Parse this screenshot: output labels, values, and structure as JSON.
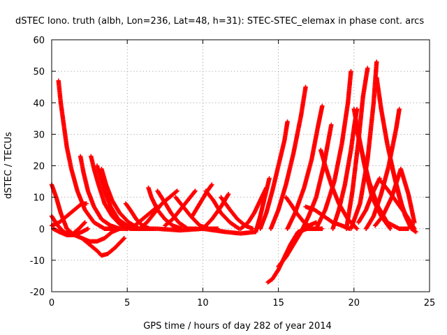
{
  "chart_data": {
    "type": "scatter",
    "title": "dSTEC Iono. truth (albh, Lon=236, Lat=48, h=31): STEC-STEC_elemax in phase cont. arcs",
    "xlabel": "GPS time / hours of day 282 of year 2014",
    "ylabel": "dSTEC  / TECUs",
    "xlim": [
      0,
      25
    ],
    "ylim": [
      -20,
      60
    ],
    "x_ticks": [
      "0",
      "5",
      "10",
      "15",
      "20",
      "25"
    ],
    "y_ticks": [
      "-20",
      "-10",
      "0",
      "10",
      "20",
      "30",
      "40",
      "50",
      "60"
    ],
    "grid": true,
    "marker": "+",
    "color": "#ff0000",
    "series": [
      {
        "x": [
          0.0,
          0.3,
          0.6,
          1.0,
          1.5,
          2.0,
          2.4
        ],
        "y": [
          14,
          10,
          5,
          0,
          -2,
          -1,
          0
        ]
      },
      {
        "x": [
          0.0,
          0.4,
          0.8,
          1.3,
          1.8,
          2.2
        ],
        "y": [
          4,
          1,
          -1,
          -2,
          0,
          2
        ]
      },
      {
        "x": [
          0.45,
          0.6,
          0.8,
          1.0,
          1.3,
          1.7,
          2.2,
          2.8,
          3.5,
          4.2
        ],
        "y": [
          47,
          40,
          33,
          26,
          19,
          12,
          6,
          2,
          0,
          0
        ]
      },
      {
        "x": [
          0.1,
          0.5,
          1.0,
          1.5,
          2.0,
          2.5,
          3.0,
          3.3,
          3.7,
          4.2,
          4.8
        ],
        "y": [
          0,
          -1,
          -2,
          -2,
          -3,
          -5,
          -7,
          -8.5,
          -8,
          -6,
          -3
        ]
      },
      {
        "x": [
          0.0,
          0.5,
          1.0,
          1.5,
          2.0,
          2.3
        ],
        "y": [
          1,
          2,
          4,
          6,
          8,
          8
        ]
      },
      {
        "x": [
          1.9,
          2.1,
          2.4,
          2.8,
          3.3,
          3.9,
          4.5,
          5.0
        ],
        "y": [
          23,
          18,
          12,
          7,
          3,
          1,
          0,
          0
        ]
      },
      {
        "x": [
          2.6,
          2.8,
          3.1,
          3.5,
          4.0,
          4.6,
          5.2,
          5.8
        ],
        "y": [
          23,
          19,
          14,
          8,
          4,
          1,
          0,
          0
        ]
      },
      {
        "x": [
          3.0,
          3.2,
          3.5,
          3.9,
          4.4,
          5.0,
          5.6,
          6.3
        ],
        "y": [
          20,
          17,
          12,
          7,
          3,
          1,
          0,
          0
        ]
      },
      {
        "x": [
          3.3,
          3.6,
          4.0,
          4.5,
          5.1,
          5.8,
          6.5
        ],
        "y": [
          19,
          14,
          9,
          5,
          2,
          0,
          0
        ]
      },
      {
        "x": [
          2.0,
          2.5,
          3.0,
          3.5,
          4.0,
          4.5
        ],
        "y": [
          -3,
          -4,
          -4,
          -3,
          -1,
          0
        ]
      },
      {
        "x": [
          4.9,
          5.2,
          5.6,
          6.0,
          6.5
        ],
        "y": [
          8,
          6,
          3,
          1,
          0
        ]
      },
      {
        "x": [
          5.0,
          5.5,
          6.0,
          6.5,
          7.0
        ],
        "y": [
          0,
          1,
          3,
          5,
          7
        ]
      },
      {
        "x": [
          6.4,
          6.6,
          7.0,
          7.5,
          8.0,
          8.6
        ],
        "y": [
          13,
          10,
          6,
          3,
          1,
          0
        ]
      },
      {
        "x": [
          5.8,
          6.3,
          6.8,
          7.3,
          7.8,
          8.3
        ],
        "y": [
          0,
          2,
          5,
          8,
          10,
          12
        ]
      },
      {
        "x": [
          7.0,
          7.4,
          7.9,
          8.4,
          9.0,
          9.6
        ],
        "y": [
          12,
          9,
          5,
          2,
          0,
          0
        ]
      },
      {
        "x": [
          7.5,
          8.0,
          8.5,
          9.0,
          9.5
        ],
        "y": [
          1,
          3,
          6,
          9,
          12
        ]
      },
      {
        "x": [
          8.2,
          8.7,
          9.2,
          9.8,
          10.4,
          11.0
        ],
        "y": [
          10,
          7,
          4,
          1,
          0,
          0
        ]
      },
      {
        "x": [
          9.3,
          9.8,
          10.3,
          10.6
        ],
        "y": [
          4,
          8,
          12,
          14
        ]
      },
      {
        "x": [
          10.2,
          10.7,
          11.2,
          11.8,
          12.4
        ],
        "y": [
          12,
          9,
          5,
          2,
          0
        ]
      },
      {
        "x": [
          10.0,
          10.6,
          11.2,
          11.7
        ],
        "y": [
          0,
          3,
          7,
          11
        ]
      },
      {
        "x": [
          11.2,
          11.8,
          12.3,
          12.8,
          13.3
        ],
        "y": [
          10,
          6,
          3,
          1,
          0
        ]
      },
      {
        "x": [
          5.5,
          7.0,
          8.5,
          10.0,
          11.5,
          12.5,
          13.5
        ],
        "y": [
          0,
          0,
          -0.5,
          0,
          -1,
          -1.5,
          -1
        ]
      },
      {
        "x": [
          12.5,
          13.0,
          13.4,
          13.8,
          14.2
        ],
        "y": [
          0,
          2,
          5,
          9,
          13
        ]
      },
      {
        "x": [
          13.5,
          13.8,
          14.1,
          14.4
        ],
        "y": [
          -1,
          4,
          10,
          16
        ]
      },
      {
        "x": [
          14.3,
          14.6,
          15.0,
          15.4,
          15.8,
          16.3,
          16.9,
          17.5
        ],
        "y": [
          -17,
          -16,
          -13,
          -9,
          -5,
          -1,
          0,
          0
        ]
      },
      {
        "x": [
          13.8,
          14.2,
          14.6,
          15.0,
          15.4,
          15.6
        ],
        "y": [
          0,
          5,
          12,
          20,
          28,
          34
        ]
      },
      {
        "x": [
          15.0,
          15.5,
          16.0,
          16.5,
          17.0,
          17.5
        ],
        "y": [
          -12,
          -9,
          -5,
          -1,
          1,
          2
        ]
      },
      {
        "x": [
          14.5,
          15.0,
          15.5,
          16.0,
          16.5,
          16.8
        ],
        "y": [
          0,
          6,
          14,
          24,
          36,
          45
        ]
      },
      {
        "x": [
          15.5,
          15.8,
          16.2,
          16.7,
          17.3,
          17.9
        ],
        "y": [
          10,
          8,
          5,
          2,
          0,
          0
        ]
      },
      {
        "x": [
          15.6,
          16.1,
          16.7,
          17.2,
          17.6,
          17.9
        ],
        "y": [
          0,
          5,
          13,
          22,
          32,
          39
        ]
      },
      {
        "x": [
          16.6,
          17.0,
          17.5,
          18.0,
          18.5
        ],
        "y": [
          0,
          4,
          10,
          20,
          33
        ]
      },
      {
        "x": [
          17.8,
          18.1,
          18.5,
          19.0,
          19.6,
          20.2
        ],
        "y": [
          25,
          20,
          14,
          8,
          3,
          0
        ]
      },
      {
        "x": [
          16.8,
          17.4,
          18.0,
          18.6,
          19.2,
          19.7
        ],
        "y": [
          7,
          6,
          4,
          2,
          1,
          0
        ]
      },
      {
        "x": [
          17.5,
          18.1,
          18.7,
          19.2,
          19.6,
          19.8
        ],
        "y": [
          0,
          6,
          15,
          27,
          40,
          50
        ]
      },
      {
        "x": [
          18.6,
          19.0,
          19.4,
          19.8,
          20.0,
          20.2
        ],
        "y": [
          0,
          6,
          14,
          25,
          32,
          38
        ]
      },
      {
        "x": [
          20.0,
          20.3,
          20.7,
          21.2,
          21.8,
          22.4
        ],
        "y": [
          38,
          30,
          20,
          10,
          4,
          0
        ]
      },
      {
        "x": [
          19.5,
          19.9,
          20.3,
          20.6,
          20.9
        ],
        "y": [
          0,
          12,
          28,
          42,
          51
        ]
      },
      {
        "x": [
          20.1,
          20.5,
          21.0,
          21.6,
          22.2,
          23.0,
          23.6
        ],
        "y": [
          33,
          25,
          15,
          7,
          2,
          0,
          0
        ]
      },
      {
        "x": [
          19.8,
          20.4,
          20.9,
          21.3,
          21.5
        ],
        "y": [
          0,
          8,
          22,
          40,
          53
        ]
      },
      {
        "x": [
          21.5,
          21.8,
          22.2,
          22.7,
          23.2,
          23.7,
          24.0
        ],
        "y": [
          48,
          38,
          27,
          16,
          7,
          1,
          0
        ]
      },
      {
        "x": [
          20.8,
          21.3,
          21.8,
          22.3,
          22.8,
          23.0
        ],
        "y": [
          0,
          4,
          11,
          20,
          32,
          38
        ]
      },
      {
        "x": [
          22.4,
          22.7,
          23.0,
          23.4,
          23.8,
          24.1
        ],
        "y": [
          22,
          16,
          10,
          4,
          0,
          -1
        ]
      },
      {
        "x": [
          21.4,
          21.9,
          22.5,
          23.1,
          23.6,
          24.0
        ],
        "y": [
          1,
          4,
          10,
          19,
          11,
          2
        ]
      },
      {
        "x": [
          20.3,
          20.8,
          21.2,
          21.7
        ],
        "y": [
          2,
          6,
          11,
          16
        ]
      },
      {
        "x": [
          21.8,
          22.3,
          22.9,
          23.5,
          24.0
        ],
        "y": [
          15,
          12,
          8,
          4,
          0
        ]
      }
    ]
  }
}
